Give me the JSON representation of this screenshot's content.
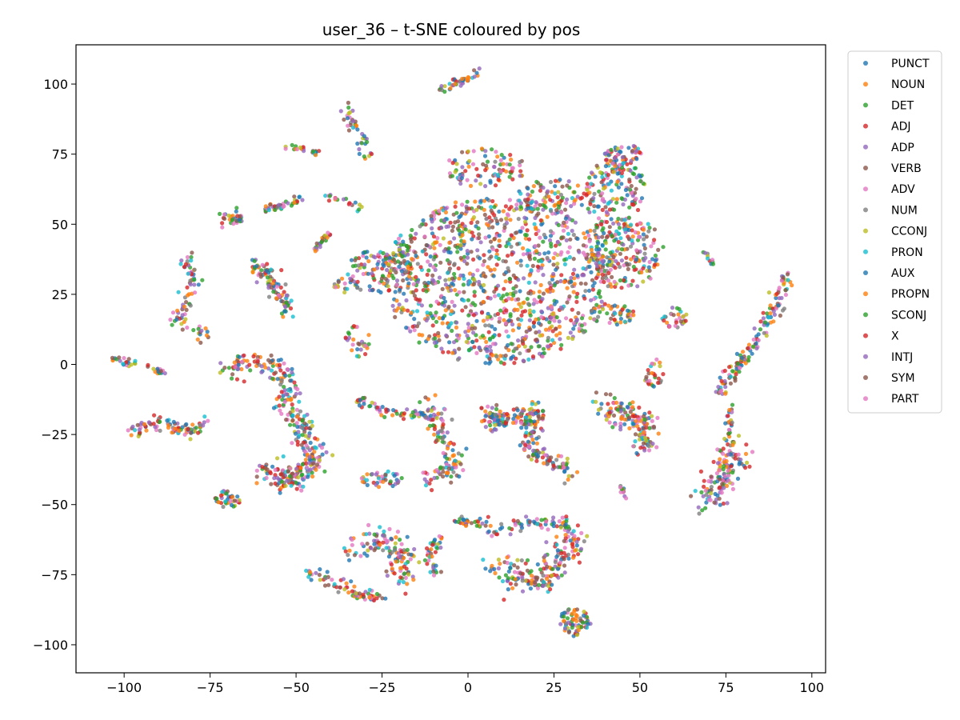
{
  "chart_data": {
    "type": "scatter",
    "title": "user_36 – t-SNE coloured by pos",
    "xlabel": "",
    "ylabel": "",
    "xlim": [
      -114,
      104
    ],
    "ylim": [
      -110,
      114
    ],
    "x_ticks": [
      -100,
      -75,
      -50,
      -25,
      0,
      25,
      50,
      75,
      100
    ],
    "y_ticks": [
      -100,
      -75,
      -50,
      -25,
      0,
      25,
      50,
      75,
      100
    ],
    "x_tick_labels": [
      "−100",
      "−75",
      "−50",
      "−25",
      "0",
      "25",
      "50",
      "75",
      "100"
    ],
    "y_tick_labels": [
      "−100",
      "−75",
      "−50",
      "−25",
      "0",
      "25",
      "50",
      "75",
      "100"
    ],
    "grid": false,
    "legend_placement": "outside-top-right",
    "series": [
      {
        "name": "PUNCT",
        "color": "#1f77b4"
      },
      {
        "name": "NOUN",
        "color": "#ff7f0e"
      },
      {
        "name": "DET",
        "color": "#2ca02c"
      },
      {
        "name": "ADJ",
        "color": "#d62728"
      },
      {
        "name": "ADP",
        "color": "#9467bd"
      },
      {
        "name": "VERB",
        "color": "#8c564b"
      },
      {
        "name": "ADV",
        "color": "#e377c2"
      },
      {
        "name": "NUM",
        "color": "#7f7f7f"
      },
      {
        "name": "CCONJ",
        "color": "#bcbd22"
      },
      {
        "name": "PRON",
        "color": "#17becf"
      },
      {
        "name": "AUX",
        "color": "#1f77b4"
      },
      {
        "name": "PROPN",
        "color": "#ff7f0e"
      },
      {
        "name": "SCONJ",
        "color": "#2ca02c"
      },
      {
        "name": "X",
        "color": "#d62728"
      },
      {
        "name": "INTJ",
        "color": "#9467bd"
      },
      {
        "name": "SYM",
        "color": "#8c564b"
      },
      {
        "name": "PART",
        "color": "#e377c2"
      }
    ],
    "clusters": [
      {
        "kind": "blob",
        "cx": 8,
        "cy": 30,
        "rx": 33,
        "ry": 30,
        "n": 1100
      },
      {
        "kind": "blob",
        "cx": 5,
        "cy": 70,
        "rx": 12,
        "ry": 7,
        "n": 90
      },
      {
        "kind": "blob",
        "cx": 25,
        "cy": 60,
        "rx": 12,
        "ry": 6,
        "n": 90
      },
      {
        "kind": "blob",
        "cx": 43,
        "cy": 60,
        "rx": 9,
        "ry": 14,
        "n": 160
      },
      {
        "kind": "blob",
        "cx": 45,
        "cy": 40,
        "rx": 12,
        "ry": 13,
        "n": 200
      },
      {
        "kind": "blob",
        "cx": 45,
        "cy": 75,
        "rx": 6,
        "ry": 4,
        "n": 50
      },
      {
        "kind": "blob",
        "cx": 42,
        "cy": 18,
        "rx": 7,
        "ry": 4,
        "n": 50
      },
      {
        "kind": "blob",
        "cx": -28,
        "cy": 33,
        "rx": 7,
        "ry": 8,
        "n": 80
      },
      {
        "kind": "blob",
        "cx": -20,
        "cy": 38,
        "rx": 5,
        "ry": 6,
        "n": 50
      },
      {
        "kind": "blob",
        "cx": -32,
        "cy": 8,
        "rx": 4,
        "ry": 6,
        "n": 30
      },
      {
        "kind": "blob",
        "cx": -70,
        "cy": -48,
        "rx": 4,
        "ry": 3,
        "n": 40
      },
      {
        "kind": "blob",
        "cx": -25,
        "cy": -41,
        "rx": 6,
        "ry": 3,
        "n": 40
      },
      {
        "kind": "blob",
        "cx": 31,
        "cy": -92,
        "rx": 5,
        "ry": 5,
        "n": 70
      },
      {
        "kind": "blob",
        "cx": 54,
        "cy": -3,
        "rx": 3,
        "ry": 5,
        "n": 30
      },
      {
        "kind": "blob",
        "cx": 60,
        "cy": 17,
        "rx": 4,
        "ry": 4,
        "n": 30
      },
      {
        "kind": "blob",
        "cx": -37,
        "cy": 28,
        "rx": 2,
        "ry": 3,
        "n": 12
      },
      {
        "kind": "blob",
        "cx": 8,
        "cy": -20,
        "rx": 4,
        "ry": 4,
        "n": 30
      },
      {
        "kind": "path",
        "pts": [
          [
            -8,
            98
          ],
          [
            3,
            104
          ]
        ],
        "w": 1.5,
        "n": 40
      },
      {
        "kind": "path",
        "pts": [
          [
            -36,
            92
          ],
          [
            -31,
            80
          ],
          [
            -30,
            73
          ]
        ],
        "w": 1.5,
        "n": 40
      },
      {
        "kind": "path",
        "pts": [
          [
            -53,
            78
          ],
          [
            -47,
            77
          ]
        ],
        "w": 1.0,
        "n": 15
      },
      {
        "kind": "path",
        "pts": [
          [
            -46,
            76
          ],
          [
            -43,
            75
          ]
        ],
        "w": 1.0,
        "n": 10
      },
      {
        "kind": "path",
        "pts": [
          [
            -72,
            51
          ],
          [
            -65,
            53
          ]
        ],
        "w": 2.0,
        "n": 35
      },
      {
        "kind": "path",
        "pts": [
          [
            -60,
            55
          ],
          [
            -48,
            59
          ]
        ],
        "w": 1.3,
        "n": 40
      },
      {
        "kind": "path",
        "pts": [
          [
            -45,
            41
          ],
          [
            -40,
            47
          ]
        ],
        "w": 1.0,
        "n": 25
      },
      {
        "kind": "path",
        "pts": [
          [
            -42,
            61
          ],
          [
            -30,
            55
          ]
        ],
        "w": 1.0,
        "n": 20
      },
      {
        "kind": "path",
        "pts": [
          [
            -82,
            38
          ],
          [
            -80,
            30
          ],
          [
            -82,
            22
          ],
          [
            -84,
            15
          ],
          [
            -80,
            12
          ],
          [
            -76,
            10
          ]
        ],
        "w": 2.0,
        "n": 80
      },
      {
        "kind": "path",
        "pts": [
          [
            -62,
            36
          ],
          [
            -56,
            28
          ],
          [
            -52,
            18
          ]
        ],
        "w": 2.5,
        "n": 90
      },
      {
        "kind": "path",
        "pts": [
          [
            -104,
            2
          ],
          [
            -97,
            0
          ]
        ],
        "w": 1.0,
        "n": 20
      },
      {
        "kind": "path",
        "pts": [
          [
            -94,
            -1
          ],
          [
            -88,
            -3
          ]
        ],
        "w": 1.0,
        "n": 15
      },
      {
        "kind": "path",
        "pts": [
          [
            -98,
            -24
          ],
          [
            -90,
            -20
          ],
          [
            -82,
            -24
          ],
          [
            -76,
            -20
          ]
        ],
        "w": 2.0,
        "n": 90
      },
      {
        "kind": "path",
        "pts": [
          [
            -70,
            -2
          ],
          [
            -62,
            2
          ],
          [
            -55,
            0
          ],
          [
            -52,
            -8
          ],
          [
            -53,
            -15
          ],
          [
            -48,
            -22
          ],
          [
            -46,
            -32
          ]
        ],
        "w": 3.0,
        "n": 200
      },
      {
        "kind": "path",
        "pts": [
          [
            -60,
            -36
          ],
          [
            -52,
            -42
          ],
          [
            -42,
            -32
          ]
        ],
        "w": 3.5,
        "n": 150
      },
      {
        "kind": "path",
        "pts": [
          [
            -33,
            -12
          ],
          [
            -25,
            -17
          ],
          [
            -12,
            -18
          ]
        ],
        "w": 1.5,
        "n": 60
      },
      {
        "kind": "path",
        "pts": [
          [
            -12,
            -13
          ],
          [
            -8,
            -24
          ],
          [
            -3,
            -36
          ],
          [
            -13,
            -42
          ]
        ],
        "w": 3.0,
        "n": 120
      },
      {
        "kind": "path",
        "pts": [
          [
            6,
            -17
          ],
          [
            13,
            -20
          ],
          [
            20,
            -16
          ],
          [
            18,
            -31
          ],
          [
            28,
            -36
          ],
          [
            30,
            -40
          ]
        ],
        "w": 3.0,
        "n": 200
      },
      {
        "kind": "path",
        "pts": [
          [
            40,
            -14
          ],
          [
            48,
            -20
          ],
          [
            52,
            -22
          ],
          [
            50,
            -30
          ]
        ],
        "w": 4.0,
        "n": 150
      },
      {
        "kind": "path",
        "pts": [
          [
            45,
            -44
          ],
          [
            45,
            -48
          ]
        ],
        "w": 1.0,
        "n": 10
      },
      {
        "kind": "path",
        "pts": [
          [
            -3,
            -56
          ],
          [
            5,
            -56
          ]
        ],
        "w": 1.5,
        "n": 30
      },
      {
        "kind": "path",
        "pts": [
          [
            -8,
            -60
          ],
          [
            -12,
            -70
          ],
          [
            -8,
            -76
          ]
        ],
        "w": 1.5,
        "n": 40
      },
      {
        "kind": "path",
        "pts": [
          [
            -48,
            -72
          ],
          [
            -40,
            -78
          ],
          [
            -32,
            -82
          ],
          [
            -25,
            -84
          ]
        ],
        "w": 2.0,
        "n": 70
      },
      {
        "kind": "path",
        "pts": [
          [
            -35,
            -66
          ],
          [
            -28,
            -63
          ],
          [
            -20,
            -65
          ],
          [
            -18,
            -72
          ],
          [
            -22,
            -78
          ]
        ],
        "w": 3.5,
        "n": 130
      },
      {
        "kind": "path",
        "pts": [
          [
            7,
            -60
          ],
          [
            18,
            -56
          ],
          [
            28,
            -57
          ],
          [
            32,
            -64
          ]
        ],
        "w": 2.0,
        "n": 80
      },
      {
        "kind": "path",
        "pts": [
          [
            8,
            -72
          ],
          [
            15,
            -76
          ],
          [
            22,
            -77
          ],
          [
            27,
            -70
          ],
          [
            30,
            -62
          ]
        ],
        "w": 4.0,
        "n": 170
      },
      {
        "kind": "path",
        "pts": [
          [
            93,
            32
          ],
          [
            90,
            22
          ],
          [
            84,
            8
          ],
          [
            77,
            -3
          ],
          [
            72,
            -10
          ]
        ],
        "w": 2.0,
        "n": 140
      },
      {
        "kind": "path",
        "pts": [
          [
            78,
            -28
          ],
          [
            75,
            -36
          ],
          [
            72,
            -45
          ],
          [
            68,
            -50
          ]
        ],
        "w": 4.0,
        "n": 140
      },
      {
        "kind": "path",
        "pts": [
          [
            76,
            -15
          ],
          [
            76,
            -25
          ]
        ],
        "w": 1.0,
        "n": 20
      },
      {
        "kind": "path",
        "pts": [
          [
            69,
            40
          ],
          [
            71,
            36
          ]
        ],
        "w": 0.8,
        "n": 10
      }
    ]
  }
}
